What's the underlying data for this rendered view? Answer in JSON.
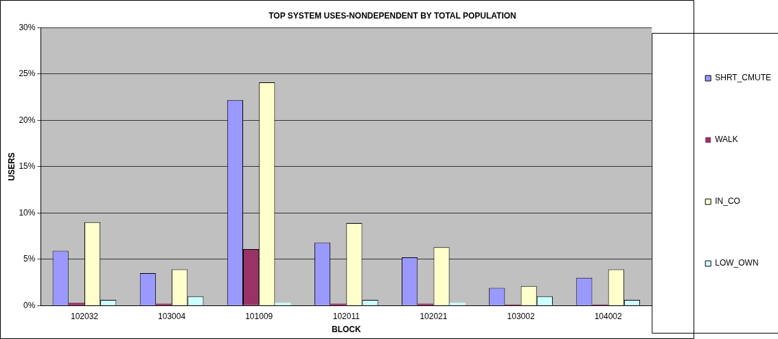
{
  "chart_data": {
    "type": "bar",
    "title": "TOP SYSTEM USES-NONDEPENDENT BY TOTAL POPULATION",
    "xlabel": "BLOCK",
    "ylabel": "USERS",
    "categories": [
      "102032",
      "103004",
      "101009",
      "102011",
      "102021",
      "103002",
      "104002"
    ],
    "series": [
      {
        "name": "SHRT_CMUTE",
        "color": "#9999ff",
        "values": [
          5.9,
          3.5,
          22.2,
          6.8,
          5.2,
          1.9,
          3.0
        ]
      },
      {
        "name": "WALK",
        "color": "#993366",
        "values": [
          0.3,
          0.2,
          6.1,
          0.2,
          0.2,
          0.1,
          0.1
        ]
      },
      {
        "name": "IN_CO",
        "color": "#ffffcc",
        "values": [
          9.0,
          3.9,
          24.1,
          8.9,
          6.3,
          2.1,
          3.9
        ]
      },
      {
        "name": "LOW_OWN",
        "color": "#ccffff",
        "values": [
          0.6,
          1.0,
          0.3,
          0.6,
          0.3,
          1.0,
          0.6
        ]
      }
    ],
    "ylim": [
      0,
      30
    ],
    "yticks": [
      {
        "value": 0,
        "label": "0%"
      },
      {
        "value": 5,
        "label": "5%"
      },
      {
        "value": 10,
        "label": "10%"
      },
      {
        "value": 15,
        "label": "15%"
      },
      {
        "value": 20,
        "label": "20%"
      },
      {
        "value": 25,
        "label": "25%"
      },
      {
        "value": 30,
        "label": "30%"
      }
    ],
    "grid": "y",
    "legend": "right"
  }
}
